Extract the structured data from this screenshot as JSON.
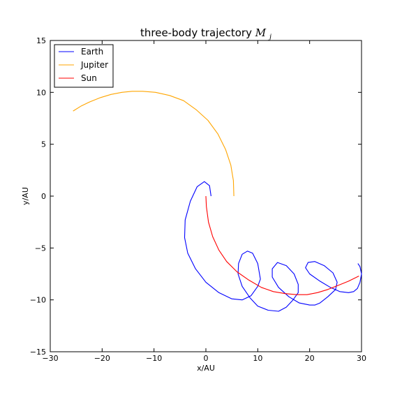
{
  "chart_data": {
    "type": "line",
    "title": "three-body trajectory",
    "title_math": "M",
    "title_math_sub": "j",
    "xlabel": "x/AU",
    "ylabel": "y/AU",
    "xlim": [
      -30,
      30
    ],
    "ylim": [
      -15,
      15
    ],
    "xticks": [
      -30,
      -20,
      -10,
      0,
      10,
      20,
      30
    ],
    "yticks": [
      -15,
      -10,
      -5,
      0,
      5,
      10,
      15
    ],
    "xtick_labels": [
      "−30",
      "−20",
      "−10",
      "0",
      "10",
      "20",
      "30"
    ],
    "ytick_labels": [
      "−15",
      "−10",
      "−5",
      "0",
      "5",
      "10",
      "15"
    ],
    "grid": false,
    "legend_position": "top-left",
    "series": [
      {
        "name": "Earth",
        "color": "#0000ff",
        "x": [
          1.0,
          0.7,
          -0.3,
          -1.7,
          -3.0,
          -4.0,
          -4.1,
          -3.5,
          -2.0,
          0.0,
          2.5,
          5.0,
          7.0,
          8.7,
          10.0,
          10.5,
          10.0,
          9.0,
          8.0,
          7.0,
          6.3,
          6.2,
          7.0,
          8.5,
          10.0,
          12.0,
          14.0,
          15.5,
          16.8,
          17.8,
          17.8,
          17.0,
          15.5,
          13.8,
          12.8,
          12.8,
          14.0,
          16.0,
          18.0,
          20.0,
          21.0,
          22.0,
          23.5,
          25.0,
          25.3,
          24.5,
          22.8,
          21.0,
          19.7,
          19.2,
          20.0,
          22.0,
          24.0,
          25.8,
          27.5,
          28.5,
          29.2,
          29.7,
          30.0,
          29.7,
          29.3
        ],
        "y": [
          0.0,
          1.0,
          1.4,
          0.9,
          -0.5,
          -2.3,
          -4.0,
          -5.5,
          -7.0,
          -8.3,
          -9.3,
          -9.9,
          -10.0,
          -9.6,
          -8.7,
          -8.0,
          -6.5,
          -5.5,
          -5.3,
          -5.6,
          -6.5,
          -7.5,
          -8.7,
          -9.8,
          -10.6,
          -11.0,
          -11.1,
          -10.7,
          -10.0,
          -9.3,
          -8.5,
          -7.5,
          -6.7,
          -6.4,
          -7.0,
          -7.8,
          -8.8,
          -9.7,
          -10.3,
          -10.5,
          -10.5,
          -10.3,
          -9.7,
          -9.0,
          -8.3,
          -7.4,
          -6.7,
          -6.3,
          -6.4,
          -6.9,
          -7.5,
          -8.2,
          -8.8,
          -9.2,
          -9.3,
          -9.2,
          -8.9,
          -8.3,
          -7.5,
          -6.8,
          -6.5
        ]
      },
      {
        "name": "Jupiter",
        "color": "#ffa500",
        "x": [
          5.4,
          5.3,
          4.8,
          3.8,
          2.3,
          0.4,
          -1.8,
          -4.3,
          -7.0,
          -9.7,
          -12.2,
          -14.2,
          -16.2,
          -18.3,
          -20.3,
          -22.3,
          -24.0,
          -25.6
        ],
        "y": [
          0.0,
          1.5,
          3.0,
          4.5,
          6.0,
          7.3,
          8.3,
          9.2,
          9.7,
          10.0,
          10.1,
          10.1,
          10.0,
          9.8,
          9.5,
          9.1,
          8.7,
          8.2
        ]
      },
      {
        "name": "Sun",
        "color": "#ff0000",
        "x": [
          0.0,
          0.1,
          0.5,
          1.3,
          2.5,
          4.0,
          6.0,
          8.3,
          10.7,
          13.0,
          15.3,
          17.5,
          19.5,
          21.5,
          23.5,
          25.5,
          27.5,
          29.5
        ],
        "y": [
          0.0,
          -1.0,
          -2.5,
          -3.9,
          -5.2,
          -6.3,
          -7.3,
          -8.1,
          -8.8,
          -9.2,
          -9.4,
          -9.5,
          -9.5,
          -9.3,
          -9.0,
          -8.6,
          -8.2,
          -7.7
        ]
      }
    ]
  }
}
